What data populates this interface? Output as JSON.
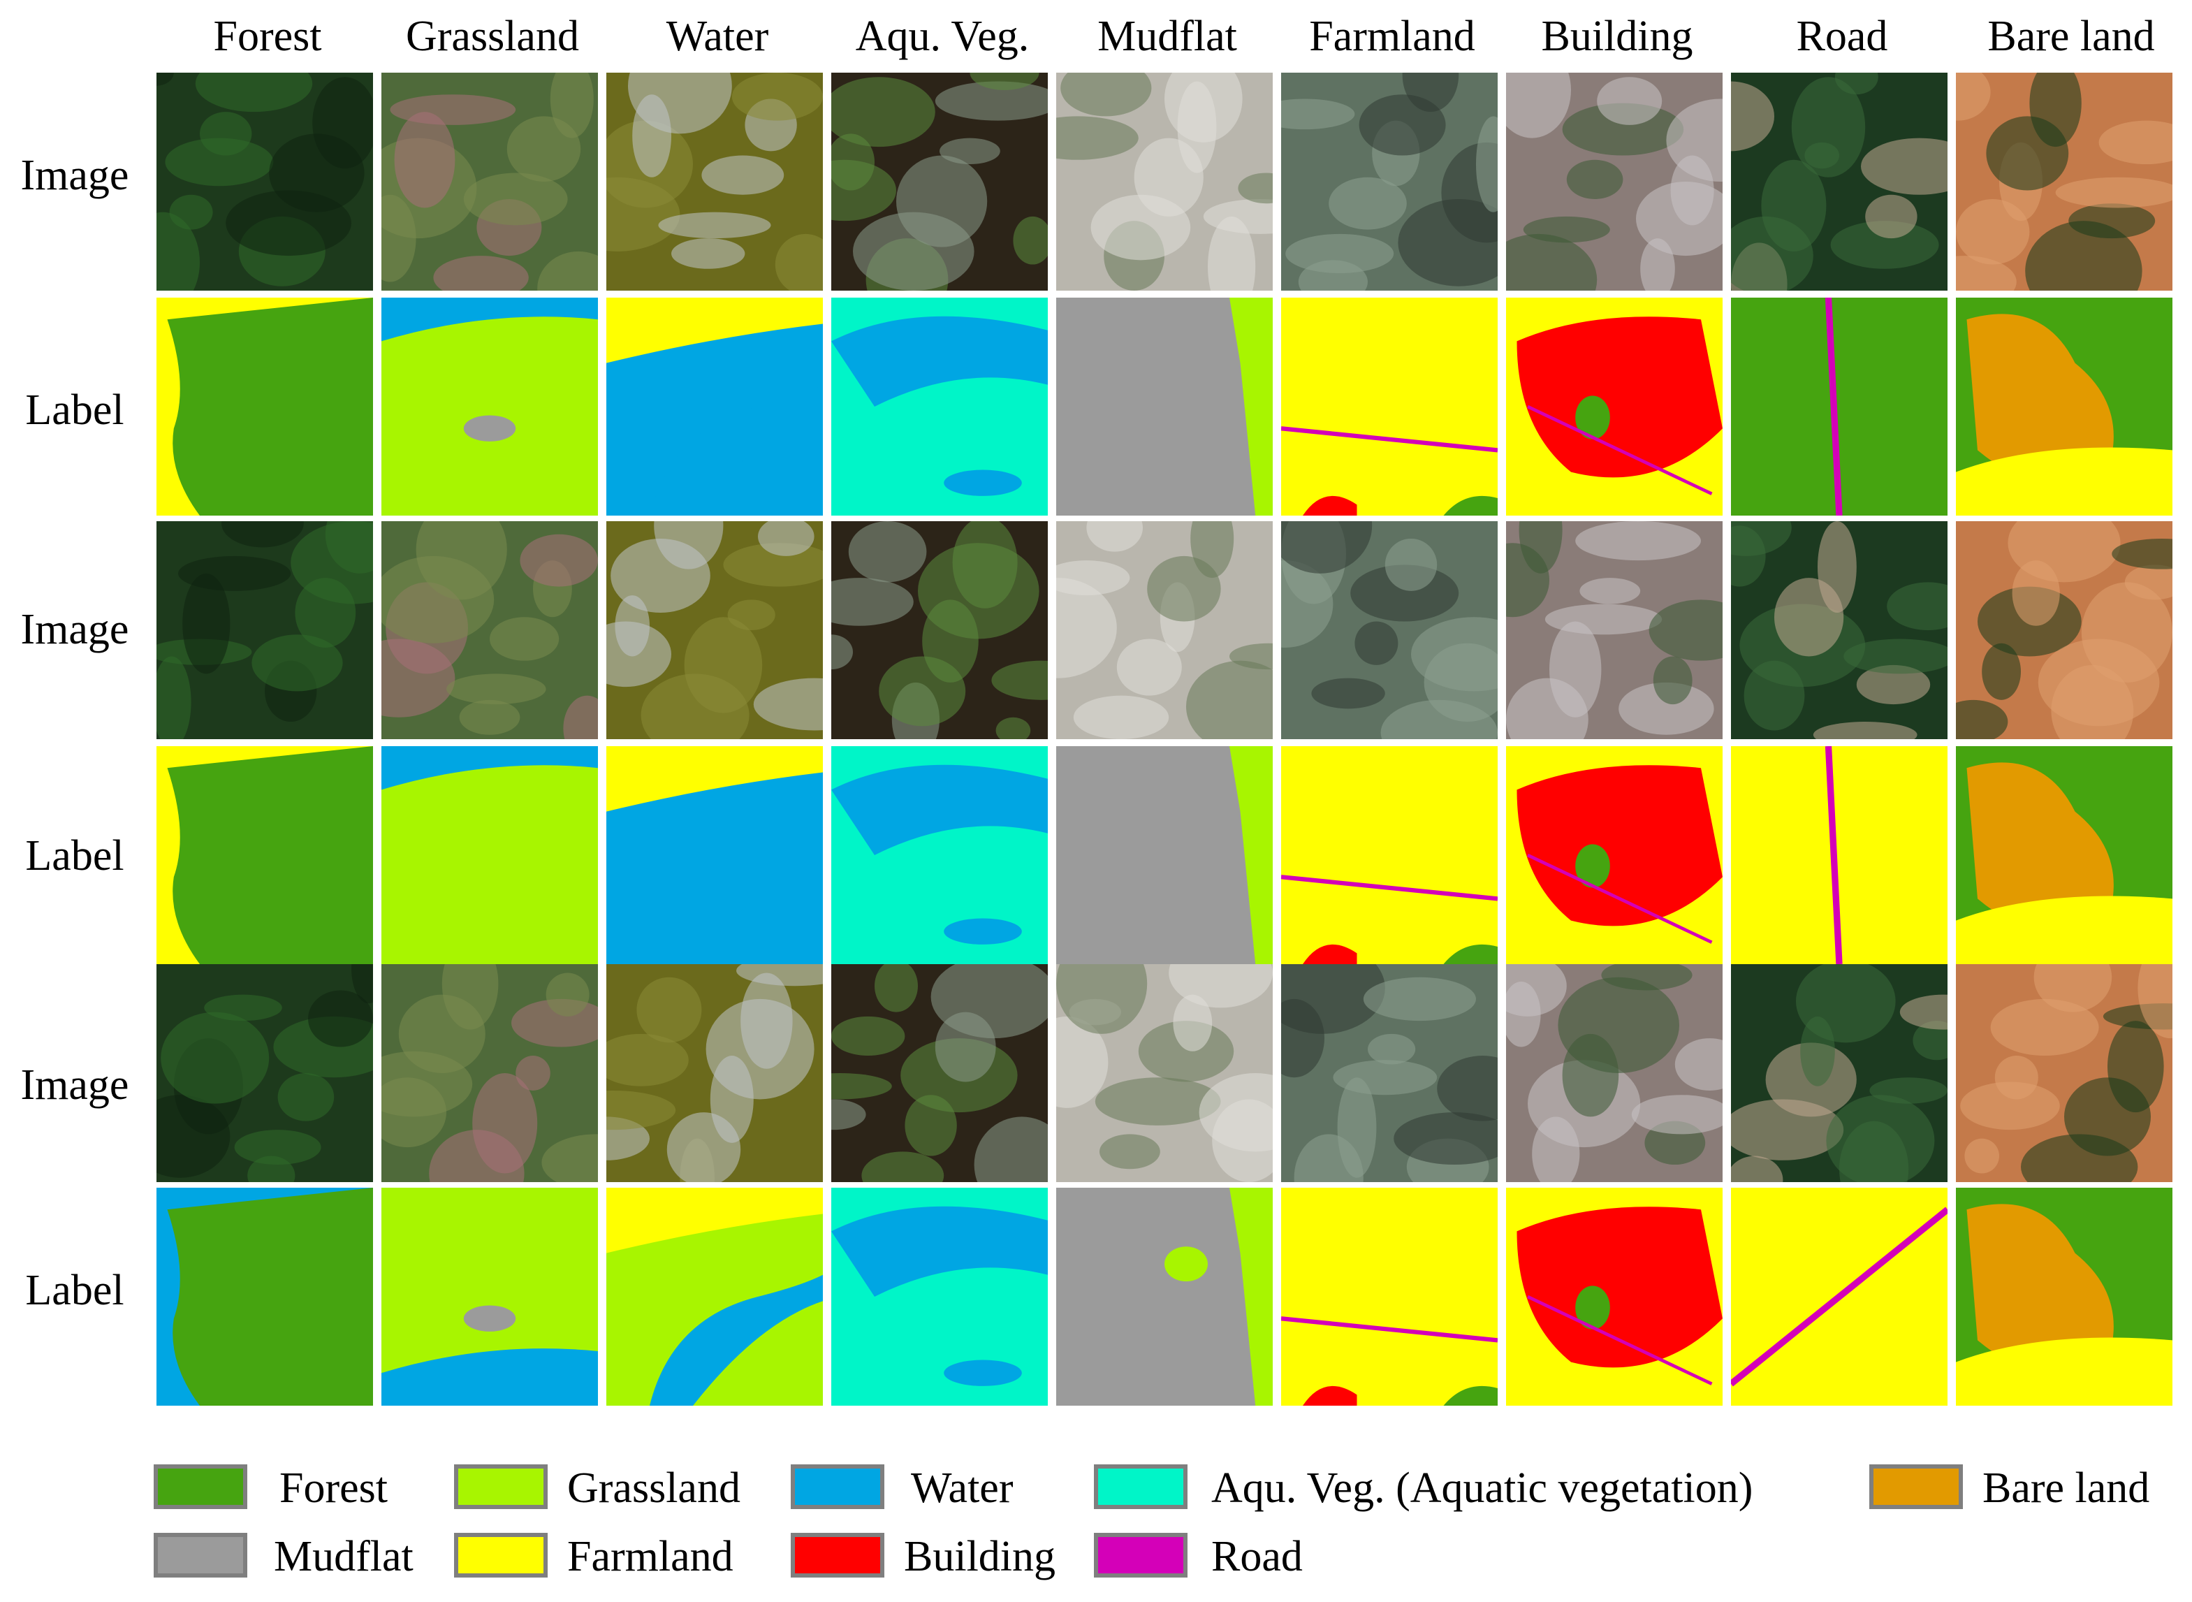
{
  "columns": [
    "Forest",
    "Grassland",
    "Water",
    "Aqu. Veg.",
    "Mudflat",
    "Farmland",
    "Building",
    "Road",
    "Bare land"
  ],
  "rows": [
    "Image",
    "Label",
    "Image",
    "Label",
    "Image",
    "Label"
  ],
  "classes": {
    "forest": {
      "name": "Forest",
      "color": "#46a410"
    },
    "grassland": {
      "name": "Grassland",
      "color": "#a8f500"
    },
    "water": {
      "name": "Water",
      "color": "#00a6e3"
    },
    "aquveg": {
      "name": "Aqu. Veg. (Aquatic vegetation)",
      "color": "#00f5c8"
    },
    "bareland": {
      "name": "Bare land",
      "color": "#e29a00"
    },
    "mudflat": {
      "name": "Mudflat",
      "color": "#9b9b9b"
    },
    "farmland": {
      "name": "Farmland",
      "color": "#ffff00"
    },
    "building": {
      "name": "Building",
      "color": "#ff0000"
    },
    "road": {
      "name": "Road",
      "color": "#d400b8"
    }
  },
  "legend": [
    "forest",
    "grassland",
    "water",
    "aquveg",
    "bareland",
    "mudflat",
    "farmland",
    "building",
    "road"
  ]
}
